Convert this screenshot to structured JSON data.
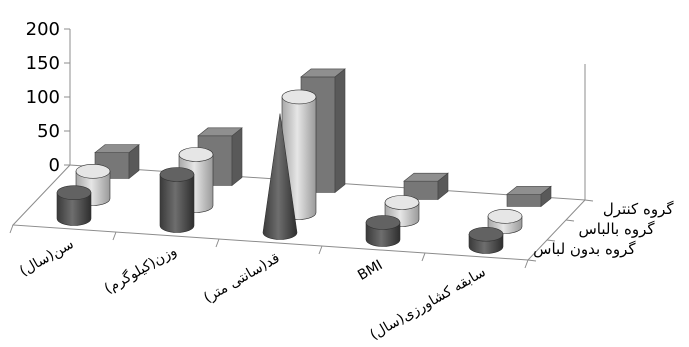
{
  "chart_data": {
    "type": "bar",
    "style": "3d-column",
    "categories": [
      "سن(سال)",
      "وزن(کیلوگرم)",
      "قد(سانتی متر)",
      "BMI",
      "سابقه کشاورزی(سال)"
    ],
    "series": [
      {
        "name": "گروه بدون لباس",
        "shape": "cylinder",
        "color": "#555555",
        "values": [
          38,
          75,
          175,
          25,
          18
        ]
      },
      {
        "name": "گروه بالباس",
        "shape": "cylinder",
        "color": "#c8c8c8",
        "values": [
          40,
          75,
          170,
          25,
          15
        ]
      },
      {
        "name": "گروه کنترل",
        "shape": "box",
        "color": "#777777",
        "values": [
          38,
          73,
          170,
          27,
          18
        ]
      }
    ],
    "ylim": [
      0,
      200
    ],
    "yticks": [
      0,
      50,
      100,
      150,
      200
    ],
    "grid": false
  }
}
